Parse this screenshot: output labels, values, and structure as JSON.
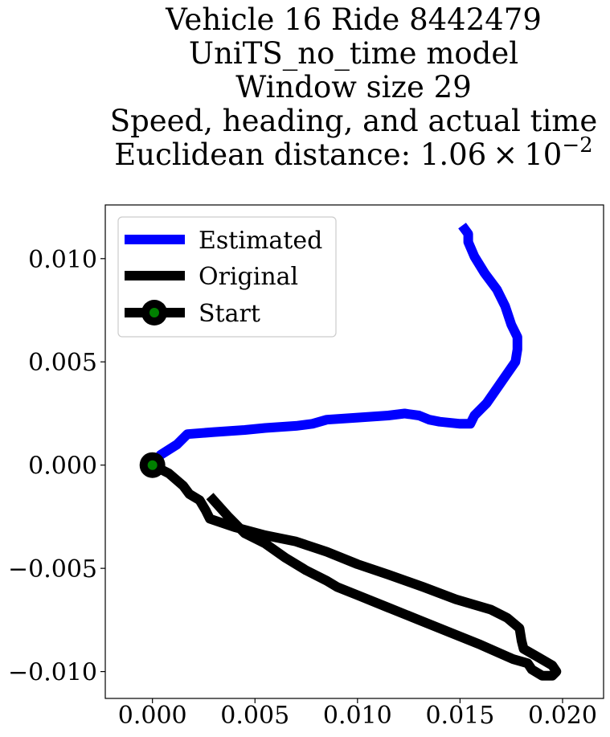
{
  "chart_data": {
    "type": "line",
    "title_lines": [
      "Vehicle 16 Ride 8442479",
      "UniTS_no_time model",
      "Window size 29",
      "Speed, heading, and actual time",
      "Euclidean distance: 1.06 × 10^{-2}"
    ],
    "title_parts": {
      "distance_prefix": "Euclidean distance: 1.06",
      "distance_times": "×",
      "distance_base": "10",
      "distance_exponent": "−2"
    },
    "xlim": [
      -0.0023,
      0.022
    ],
    "ylim": [
      -0.0113,
      0.0126
    ],
    "x_ticks": [
      0.0,
      0.005,
      0.01,
      0.015,
      0.02
    ],
    "x_tick_labels": [
      "0.000",
      "0.005",
      "0.010",
      "0.015",
      "0.020"
    ],
    "y_ticks": [
      -0.01,
      -0.005,
      0.0,
      0.005,
      0.01
    ],
    "y_tick_labels": [
      "−0.010",
      "−0.005",
      "0.000",
      "0.005",
      "0.010"
    ],
    "legend": {
      "position": "upper left",
      "entries": [
        "Estimated",
        "Original",
        "Start"
      ]
    },
    "series": [
      {
        "name": "Estimated",
        "color": "#0000ff",
        "points": [
          [
            0.0,
            0.0
          ],
          [
            0.0004,
            0.0005
          ],
          [
            0.0012,
            0.001
          ],
          [
            0.0017,
            0.0015
          ],
          [
            0.003,
            0.0016
          ],
          [
            0.0045,
            0.0017
          ],
          [
            0.0055,
            0.0018
          ],
          [
            0.007,
            0.0019
          ],
          [
            0.0078,
            0.002
          ],
          [
            0.0085,
            0.0022
          ],
          [
            0.01,
            0.0023
          ],
          [
            0.0115,
            0.0024
          ],
          [
            0.0123,
            0.0025
          ],
          [
            0.013,
            0.0024
          ],
          [
            0.0135,
            0.0022
          ],
          [
            0.014,
            0.0021
          ],
          [
            0.015,
            0.002
          ],
          [
            0.0155,
            0.002
          ],
          [
            0.0157,
            0.0024
          ],
          [
            0.0163,
            0.003
          ],
          [
            0.017,
            0.004
          ],
          [
            0.0177,
            0.005
          ],
          [
            0.0178,
            0.0056
          ],
          [
            0.0178,
            0.0062
          ],
          [
            0.0175,
            0.0068
          ],
          [
            0.0172,
            0.0077
          ],
          [
            0.0168,
            0.0085
          ],
          [
            0.0162,
            0.0093
          ],
          [
            0.0157,
            0.0101
          ],
          [
            0.0154,
            0.0108
          ],
          [
            0.0154,
            0.0112
          ],
          [
            0.0151,
            0.0116
          ]
        ]
      },
      {
        "name": "Original",
        "color": "#000000",
        "points": [
          [
            0.0,
            0.0
          ],
          [
            0.0008,
            -0.0004
          ],
          [
            0.0015,
            -0.001
          ],
          [
            0.0018,
            -0.0014
          ],
          [
            0.0023,
            -0.0017
          ],
          [
            0.0026,
            -0.0022
          ],
          [
            0.0028,
            -0.0026
          ],
          [
            0.004,
            -0.003
          ],
          [
            0.0055,
            -0.0034
          ],
          [
            0.007,
            -0.0037
          ],
          [
            0.0085,
            -0.0042
          ],
          [
            0.01,
            -0.0048
          ],
          [
            0.0115,
            -0.0053
          ],
          [
            0.0132,
            -0.0059
          ],
          [
            0.0148,
            -0.0065
          ],
          [
            0.0165,
            -0.007
          ],
          [
            0.0173,
            -0.0074
          ],
          [
            0.0179,
            -0.0079
          ],
          [
            0.018,
            -0.0085
          ],
          [
            0.0181,
            -0.0089
          ],
          [
            0.0188,
            -0.0093
          ],
          [
            0.0195,
            -0.0097
          ],
          [
            0.0197,
            -0.01
          ],
          [
            0.0195,
            -0.0102
          ],
          [
            0.019,
            -0.0102
          ],
          [
            0.0185,
            -0.0099
          ],
          [
            0.0183,
            -0.0096
          ],
          [
            0.0176,
            -0.0094
          ],
          [
            0.016,
            -0.0087
          ],
          [
            0.0145,
            -0.0081
          ],
          [
            0.013,
            -0.0075
          ],
          [
            0.0115,
            -0.0069
          ],
          [
            0.01,
            -0.0063
          ],
          [
            0.009,
            -0.0059
          ],
          [
            0.0085,
            -0.0056
          ],
          [
            0.0075,
            -0.0051
          ],
          [
            0.0065,
            -0.0045
          ],
          [
            0.0055,
            -0.0038
          ],
          [
            0.0045,
            -0.0033
          ],
          [
            0.0037,
            -0.0025
          ],
          [
            0.0028,
            -0.0015
          ]
        ]
      }
    ],
    "start_marker": {
      "name": "Start",
      "x": 0.0,
      "y": 0.0,
      "outer_color": "#000000",
      "inner_color": "#008000"
    }
  }
}
